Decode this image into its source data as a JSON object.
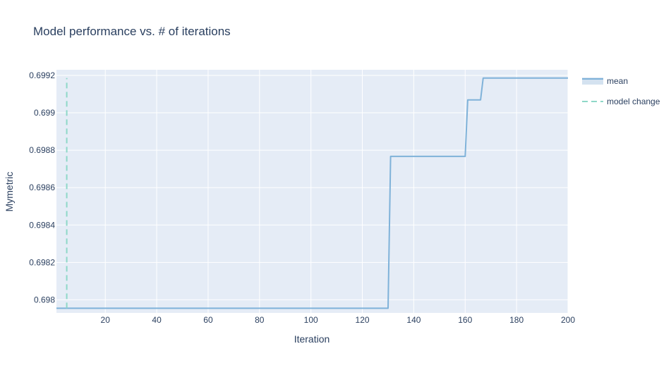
{
  "chart_data": {
    "type": "line",
    "title": "Model performance vs. # of iterations",
    "xlabel": "Iteration",
    "ylabel": "Mymetric",
    "xlim": [
      1,
      200
    ],
    "ylim": [
      0.69793,
      0.69923
    ],
    "grid": true,
    "legend_position": "top-right",
    "x_ticks": [
      {
        "value": 20,
        "label": "20"
      },
      {
        "value": 40,
        "label": "40"
      },
      {
        "value": 60,
        "label": "60"
      },
      {
        "value": 80,
        "label": "80"
      },
      {
        "value": 100,
        "label": "100"
      },
      {
        "value": 120,
        "label": "120"
      },
      {
        "value": 140,
        "label": "140"
      },
      {
        "value": 160,
        "label": "160"
      },
      {
        "value": 180,
        "label": "180"
      },
      {
        "value": 200,
        "label": "200"
      }
    ],
    "y_ticks": [
      {
        "value": 0.698,
        "label": "0.698"
      },
      {
        "value": 0.6982,
        "label": "0.6982"
      },
      {
        "value": 0.6984,
        "label": "0.6984"
      },
      {
        "value": 0.6986,
        "label": "0.6986"
      },
      {
        "value": 0.6988,
        "label": "0.6988"
      },
      {
        "value": 0.699,
        "label": "0.699"
      },
      {
        "value": 0.6992,
        "label": "0.6992"
      }
    ],
    "series": [
      {
        "name": "mean",
        "color": "#7fb2d9",
        "dash": "solid",
        "x": [
          1,
          130,
          131,
          160,
          161,
          166,
          167,
          200
        ],
        "y": [
          0.697955,
          0.697955,
          0.698767,
          0.698767,
          0.699069,
          0.699069,
          0.699186,
          0.699186
        ]
      },
      {
        "name": "model change",
        "color": "#8ed8c8",
        "dash": "dashed",
        "x": [
          5,
          5
        ],
        "y": [
          0.697955,
          0.699186
        ]
      }
    ],
    "colors": {
      "plot_bg": "#e5ecf6",
      "grid": "#ffffff",
      "text": "#2a3f5f"
    }
  }
}
